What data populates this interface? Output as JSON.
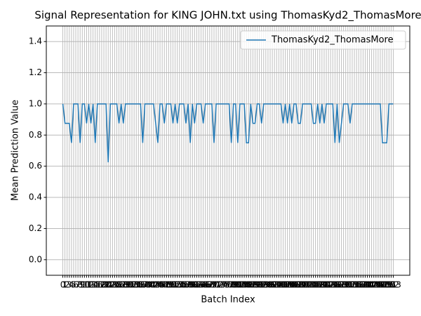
{
  "chart_data": {
    "type": "line",
    "title": "Signal Representation for KING JOHN.txt using ThomasKyd2_ThomasMore",
    "x_label": "Batch Index",
    "y_label": "Mean Prediction Value",
    "x": [
      0,
      1,
      2,
      3,
      4,
      5,
      6,
      7,
      8,
      9,
      10,
      11,
      12,
      13,
      14,
      15,
      16,
      17,
      18,
      19,
      20,
      21,
      22,
      23,
      24,
      25,
      26,
      27,
      28,
      29,
      30,
      31,
      32,
      33,
      34,
      35,
      36,
      37,
      38,
      39,
      40,
      41,
      42,
      43,
      44,
      45,
      46,
      47,
      48,
      49,
      50,
      51,
      52,
      53,
      54,
      55,
      56,
      57,
      58,
      59,
      60,
      61,
      62,
      63,
      64,
      65,
      66,
      67,
      68,
      69,
      70,
      71,
      72,
      73,
      74,
      75,
      76,
      77,
      78,
      79,
      80,
      81,
      82,
      83,
      84,
      85,
      86,
      87,
      88,
      89,
      90,
      91,
      92,
      93,
      94,
      95,
      96,
      97,
      98,
      99,
      100,
      101,
      102,
      103,
      104,
      105,
      106,
      107,
      108,
      109,
      110,
      111,
      112,
      113,
      114,
      115,
      116,
      117,
      118,
      119,
      120,
      121,
      122,
      123,
      124,
      125,
      126,
      127,
      128,
      129,
      130,
      131,
      132,
      133,
      134,
      135,
      136,
      137,
      138,
      139,
      140,
      141,
      142,
      143,
      144,
      145,
      146,
      147,
      148,
      149,
      150,
      151,
      152,
      153
    ],
    "series": [
      {
        "name": "ThomasKyd2_ThomasMore",
        "color": "#1f77b4",
        "values": [
          1,
          0.875,
          0.875,
          0.875,
          0.75,
          1,
          1,
          1,
          0.75,
          1,
          1,
          0.875,
          1,
          0.875,
          1,
          0.75,
          1,
          1,
          1,
          1,
          1,
          0.625,
          1,
          1,
          1,
          1,
          0.875,
          1,
          0.875,
          1,
          1,
          1,
          1,
          1,
          1,
          1,
          1,
          0.75,
          1,
          1,
          1,
          1,
          1,
          0.875,
          0.75,
          1,
          1,
          0.875,
          1,
          1,
          1,
          0.875,
          1,
          0.875,
          1,
          1,
          1,
          0.875,
          1,
          0.75,
          1,
          0.875,
          1,
          1,
          1,
          0.875,
          1,
          1,
          1,
          1,
          0.75,
          1,
          1,
          1,
          1,
          1,
          1,
          1,
          0.75,
          1,
          1,
          0.75,
          1,
          1,
          1,
          0.75,
          0.75,
          1,
          0.875,
          0.875,
          1,
          1,
          0.875,
          1,
          1,
          1,
          1,
          1,
          1,
          1,
          1,
          1,
          0.875,
          1,
          0.875,
          1,
          0.875,
          1,
          1,
          0.875,
          0.875,
          1,
          1,
          1,
          1,
          1,
          0.875,
          0.875,
          1,
          0.875,
          1,
          0.875,
          1,
          1,
          1,
          1,
          0.75,
          1,
          0.75,
          0.875,
          1,
          1,
          1,
          0.875,
          1,
          1,
          1,
          1,
          1,
          1,
          1,
          1,
          1,
          1,
          1,
          1,
          1,
          1,
          0.75,
          0.75,
          0.75,
          1,
          1,
          1
        ]
      }
    ],
    "xlim": [
      -7.65,
      160.65
    ],
    "ylim": [
      -0.1,
      1.5
    ],
    "xticks": [
      0,
      1,
      2,
      3,
      4,
      5,
      6,
      7,
      8,
      9,
      10,
      11,
      12,
      13,
      14,
      15,
      16,
      17,
      18,
      19,
      20,
      21,
      22,
      23,
      24,
      25,
      26,
      27,
      28,
      29,
      30,
      31,
      32,
      33,
      34,
      35,
      36,
      37,
      38,
      39,
      40,
      41,
      42,
      43,
      44,
      45,
      46,
      47,
      48,
      49,
      50,
      51,
      52,
      53,
      54,
      55,
      56,
      57,
      58,
      59,
      60,
      61,
      62,
      63,
      64,
      65,
      66,
      67,
      68,
      69,
      70,
      71,
      72,
      73,
      74,
      75,
      76,
      77,
      78,
      79,
      80,
      81,
      82,
      83,
      84,
      85,
      86,
      87,
      88,
      89,
      90,
      91,
      92,
      93,
      94,
      95,
      96,
      97,
      98,
      99,
      100,
      101,
      102,
      103,
      104,
      105,
      106,
      107,
      108,
      109,
      110,
      111,
      112,
      113,
      114,
      115,
      116,
      117,
      118,
      119,
      120,
      121,
      122,
      123,
      124,
      125,
      126,
      127,
      128,
      129,
      130,
      131,
      132,
      133,
      134,
      135,
      136,
      137,
      138,
      139,
      140,
      141,
      142,
      143,
      144,
      145,
      146,
      147,
      148,
      149,
      150,
      151,
      152,
      153
    ],
    "yticks": [
      {
        "value": 0,
        "label": "0.0"
      },
      {
        "value": 0.2,
        "label": "0.2"
      },
      {
        "value": 0.4,
        "label": "0.4"
      },
      {
        "value": 0.6,
        "label": "0.6"
      },
      {
        "value": 0.8,
        "label": "0.8"
      },
      {
        "value": 1,
        "label": "1.0"
      },
      {
        "value": 1.2,
        "label": "1.2"
      },
      {
        "value": 1.4,
        "label": "1.4"
      }
    ],
    "grid": true,
    "legend": "upper right"
  }
}
